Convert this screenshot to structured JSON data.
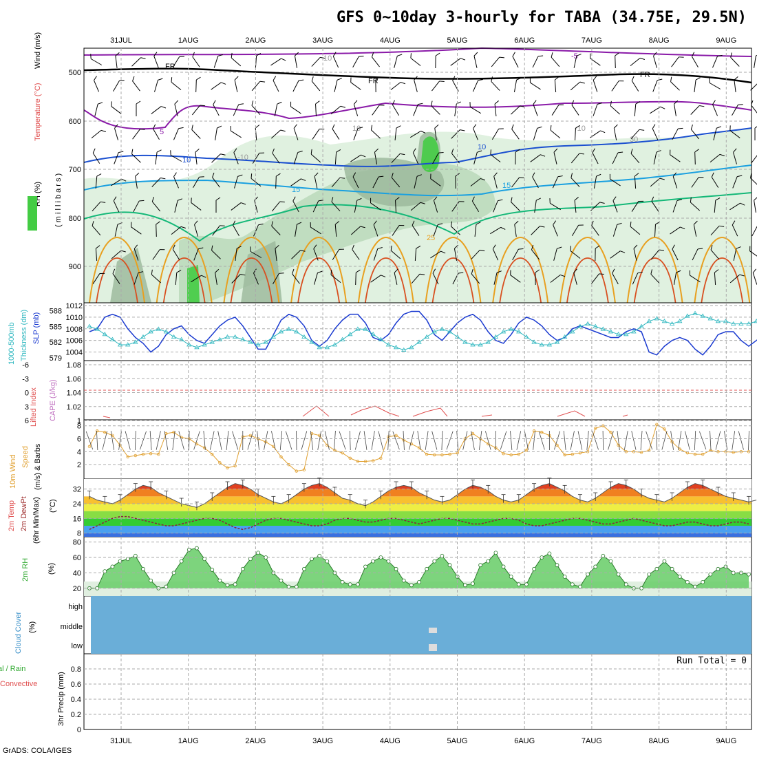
{
  "title": "GFS 0~10day 3-hourly for TABA (34.75E, 29.5N)",
  "credit": "GrADS: COLA/IGES",
  "date_labels": [
    "31JUL",
    "1AUG",
    "2AUG",
    "3AUG",
    "4AUG",
    "5AUG",
    "6AUG",
    "7AUG",
    "8AUG",
    "9AUG"
  ],
  "colors": {
    "temp_purple": "#8a1aa8",
    "temp_black": "#000000",
    "temp_blue": "#1a4fd0",
    "temp_lightblue": "#1aa0e0",
    "temp_green": "#14b878",
    "temp_orange": "#e8a020",
    "slp": "#1a3ad0",
    "thickness": "#30b8c0",
    "cape": "#e05050",
    "wind": "#e0a030",
    "cloud": "#6aaed8",
    "rh": "#33cc33"
  },
  "panels": {
    "upper_air": {
      "ylabel_rh": "RH (%)",
      "ylabel_temp": "Temperature (°C)",
      "ylabel_wind": "Wind (m/s)",
      "ylabel_units": "( m i l l i b a r s )",
      "yticks": [
        "500",
        "600",
        "700",
        "800",
        "900"
      ],
      "contour_labels": [
        "FR",
        "FR",
        "FR",
        "-5",
        "5",
        "10",
        "10",
        "15",
        "15",
        "25",
        "10",
        "10",
        "30",
        "-10",
        "-10"
      ]
    },
    "slp": {
      "ylabel1": "1000-500mb",
      "ylabel2": "Thickness (dm)",
      "ylabel3": "SLP (mb)",
      "left_ticks": [
        "588",
        "585",
        "582",
        "579"
      ],
      "right_ticks": [
        "1012",
        "1010",
        "1008",
        "1006",
        "1004"
      ]
    },
    "cape": {
      "ylabel1": "Lifted Index",
      "ylabel2": "CAPE (J/kg)",
      "left_ticks": [
        "-6",
        "-3",
        "0",
        "3",
        "6"
      ],
      "right_ticks": [
        "1.08",
        "1.06",
        "1.04",
        "1.02",
        "1"
      ]
    },
    "wind10": {
      "ylabel1": "10m Wind",
      "ylabel2": "Speed",
      "ylabel3": "(m/s) & Barbs",
      "yticks": [
        "8",
        "6",
        "4",
        "2"
      ]
    },
    "temp2m": {
      "ylabel1": "2m Temp",
      "ylabel2": "2m DewPt",
      "ylabel3": "(6hr Min/Max)",
      "ylabel4": "(°C)",
      "yticks": [
        "32",
        "24",
        "16",
        "8"
      ]
    },
    "rh2m": {
      "ylabel1": "2m RH",
      "ylabel2": "(%)",
      "yticks": [
        "80",
        "60",
        "40",
        "20"
      ]
    },
    "cloud": {
      "ylabel1": "Cloud Cover",
      "ylabel2": "(%)",
      "levels": [
        "high",
        "middle",
        "low"
      ]
    },
    "precip": {
      "ylabel1": "tal / Rain",
      "ylabel2": "Convective",
      "ylabel3": "3hr Precip (mm)",
      "run_total": "Run Total = 0",
      "yticks": [
        "0.8",
        "0.6",
        "0.4",
        "0.2",
        "0"
      ]
    }
  },
  "chart_data": {
    "type": "line",
    "x_dates": [
      "31JUL",
      "1AUG",
      "2AUG",
      "3AUG",
      "4AUG",
      "5AUG",
      "6AUG",
      "7AUG",
      "8AUG",
      "9AUG"
    ],
    "slp_mb": [
      1007.5,
      1008,
      1010,
      1010.5,
      1010,
      1008,
      1006.5,
      1005.5,
      1004,
      1005,
      1007,
      1008,
      1008.5,
      1007,
      1006,
      1005.5,
      1007,
      1008.5,
      1009.5,
      1010,
      1008.5,
      1006.5,
      1004.5,
      1004.5,
      1007,
      1009.5,
      1010.5,
      1010,
      1008.5,
      1006,
      1005,
      1006,
      1008,
      1009.5,
      1010.5,
      1010.5,
      1009,
      1006.5,
      1006,
      1007,
      1009,
      1010.5,
      1011,
      1011,
      1009.5,
      1007,
      1006,
      1007.5,
      1009,
      1010,
      1010.5,
      1009.5,
      1007.5,
      1006,
      1005.5,
      1007,
      1009,
      1010,
      1009.5,
      1008.5,
      1007,
      1006,
      1006.5,
      1008,
      1008.5,
      1008,
      1007.5,
      1007,
      1006.5,
      1006.5,
      1007.5,
      1008,
      1007.5,
      1004,
      1003.5,
      1005,
      1006,
      1006.5,
      1006,
      1004.5,
      1003.5,
      1005,
      1007,
      1007.5,
      1007.5,
      1006,
      1005,
      1006,
      1007,
      1007.5
    ],
    "thickness_dm": [
      585,
      584.5,
      583.5,
      582.5,
      581.5,
      581.5,
      582,
      583,
      584,
      584.5,
      584,
      583,
      582.5,
      581.5,
      581,
      581.5,
      582,
      582.5,
      583,
      583,
      582.5,
      582,
      581.5,
      582,
      583,
      584,
      584.5,
      584,
      583,
      582,
      581,
      581,
      581.5,
      582.5,
      583.5,
      584.5,
      584.5,
      583.5,
      582.5,
      581.5,
      581,
      580.5,
      581,
      582,
      583,
      584,
      584.5,
      584,
      583,
      582,
      581.5,
      581.5,
      582,
      583,
      584,
      584.5,
      584,
      583,
      582,
      581.5,
      581.5,
      582,
      583,
      584,
      585,
      585.5,
      585,
      584.5,
      584,
      583.5,
      583.5,
      584,
      585,
      586,
      586.5,
      586,
      585.5,
      586,
      587,
      587.5,
      587,
      586.5,
      586,
      586,
      585.5,
      585.5,
      585.5,
      586,
      586,
      586
    ],
    "wind10_ms": [
      4.8,
      7.2,
      7.0,
      6.5,
      5.0,
      3.2,
      3.4,
      3.6,
      3.7,
      3.6,
      6.8,
      7.0,
      6.2,
      6.0,
      5.2,
      4.6,
      3.6,
      2.3,
      1.5,
      1.8,
      6.3,
      6.5,
      6.0,
      5.5,
      4.8,
      3.2,
      2.0,
      1.0,
      1.2,
      6.8,
      6.5,
      5.0,
      4.2,
      3.8,
      3.0,
      2.5,
      2.5,
      2.6,
      3.0,
      6.3,
      6.5,
      5.8,
      5.2,
      4.6,
      3.6,
      3.5,
      3.5,
      3.6,
      3.8,
      6.0,
      6.8,
      6.0,
      5.2,
      4.6,
      3.7,
      3.5,
      3.6,
      4.2,
      7.2,
      7.0,
      6.5,
      5.0,
      3.5,
      3.6,
      3.8,
      4.0,
      7.6,
      8.0,
      7.0,
      5.0,
      4.0,
      4.0,
      3.9,
      4.2,
      8.2,
      7.5,
      5.5,
      4.4,
      3.8,
      3.6,
      3.6,
      4.2,
      4.0,
      4.0,
      3.9,
      4.0,
      4.0
    ],
    "temp2m_c": [
      28,
      26,
      25,
      24,
      26,
      29,
      32,
      34,
      33,
      30,
      28,
      26,
      24,
      23,
      22,
      24,
      27,
      30,
      33,
      35,
      34,
      32,
      29,
      27,
      25,
      24,
      26,
      29,
      32,
      34,
      35,
      33,
      30,
      27,
      26,
      24,
      23,
      25,
      28,
      31,
      33,
      34,
      33,
      30,
      28,
      26,
      25,
      26,
      29,
      32,
      34,
      33,
      31,
      28,
      26,
      25,
      26,
      29,
      32,
      34,
      35,
      33,
      31,
      28,
      26,
      25,
      27,
      30,
      33,
      35,
      34,
      32,
      29,
      27,
      26,
      25,
      27,
      30,
      33,
      35,
      34,
      32,
      30,
      28,
      27,
      26,
      25,
      26
    ],
    "dewpt2m_c": [
      10,
      12,
      14,
      16,
      17,
      17,
      16,
      15,
      14,
      13,
      12,
      12,
      13,
      14,
      15,
      16,
      16,
      15,
      13,
      11,
      10,
      11,
      13,
      15,
      16,
      16,
      15,
      14,
      13,
      12,
      12,
      13,
      15,
      16,
      16,
      15,
      14,
      14,
      15,
      16,
      16,
      15,
      14,
      13,
      14,
      15,
      16,
      16,
      15,
      14,
      13,
      13,
      14,
      15,
      16,
      16,
      15,
      13,
      12,
      12,
      13,
      14,
      15,
      16,
      16,
      15,
      14,
      13,
      13,
      14,
      15,
      16,
      15,
      14,
      13,
      12,
      12,
      13,
      14,
      14,
      13,
      12,
      12,
      13,
      14,
      14,
      13
    ],
    "rh2m_pct": [
      20,
      20,
      42,
      48,
      55,
      58,
      62,
      45,
      30,
      20,
      22,
      40,
      55,
      70,
      72,
      58,
      44,
      30,
      24,
      25,
      45,
      58,
      66,
      60,
      40,
      30,
      22,
      22,
      45,
      58,
      62,
      55,
      40,
      28,
      25,
      25,
      48,
      55,
      60,
      55,
      45,
      30,
      24,
      28,
      45,
      55,
      62,
      50,
      35,
      24,
      26,
      50,
      55,
      66,
      48,
      35,
      25,
      25,
      45,
      60,
      65,
      50,
      35,
      25,
      22,
      38,
      48,
      62,
      55,
      38,
      25,
      20,
      20,
      38,
      45,
      55,
      45,
      35,
      28,
      22,
      28,
      38,
      45,
      48,
      40,
      40,
      38
    ],
    "cloud_cover_pct": {
      "high": 0,
      "middle": 0,
      "low": 0
    },
    "precip_mm": 0,
    "run_total_mm": 0,
    "slp_ylim": [
      1003,
      1012
    ],
    "thickness_ylim": [
      579,
      589
    ],
    "wind_ylim": [
      0,
      8.5
    ],
    "temp_ylim": [
      6,
      36
    ],
    "rh_ylim": [
      10,
      85
    ],
    "precip_ylim": [
      0,
      1
    ]
  }
}
